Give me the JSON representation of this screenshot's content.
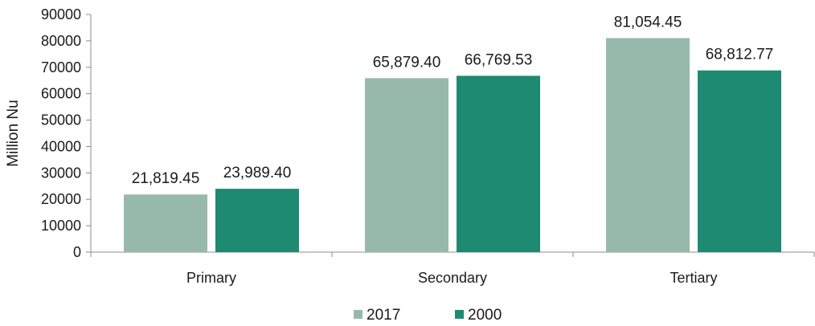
{
  "chart_data": {
    "type": "bar",
    "ylabel": "Million Nu",
    "xlabel": "",
    "categories": [
      "Primary",
      "Secondary",
      "Tertiary"
    ],
    "series": [
      {
        "name": "2017",
        "values": [
          21819.45,
          65879.4,
          81054.45
        ],
        "labels": [
          "21,819.45",
          "65,879.40",
          "81,054.45"
        ],
        "color": "#97b9ac"
      },
      {
        "name": "2000",
        "values": [
          23989.4,
          66769.53,
          68812.77
        ],
        "labels": [
          "23,989.40",
          "66,769.53",
          "68,812.77"
        ],
        "color": "#1e8a72"
      }
    ],
    "ylim": [
      0,
      90000
    ],
    "yticks": [
      "0",
      "10000",
      "20000",
      "30000",
      "40000",
      "50000",
      "60000",
      "70000",
      "80000",
      "90000"
    ],
    "grid": false,
    "legend_position": "bottom"
  }
}
